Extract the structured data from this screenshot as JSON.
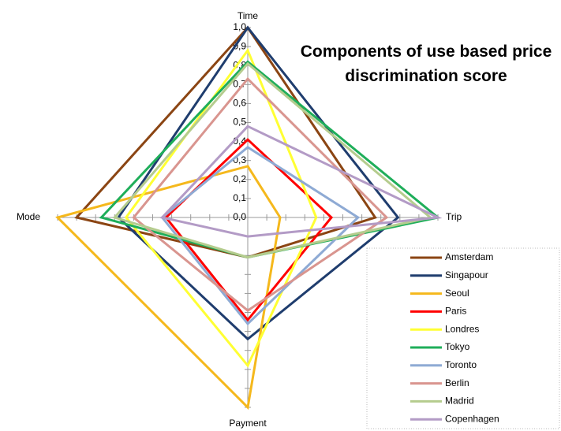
{
  "chart_data": {
    "type": "radar",
    "title": "Components of use based price discrimination score",
    "axes": [
      "Time",
      "Trip",
      "Payment",
      "Mode"
    ],
    "ylim": [
      0,
      1
    ],
    "yticks": [
      {
        "value": 0,
        "label": "0,0"
      },
      {
        "value": 0.1,
        "label": "0,1"
      },
      {
        "value": 0.2,
        "label": "0,2"
      },
      {
        "value": 0.3,
        "label": "0,3"
      },
      {
        "value": 0.4,
        "label": "0,4"
      },
      {
        "value": 0.5,
        "label": "0,5"
      },
      {
        "value": 0.6,
        "label": "0,6"
      },
      {
        "value": 0.7,
        "label": "0,7"
      },
      {
        "value": 0.8,
        "label": "0,8"
      },
      {
        "value": 0.9,
        "label": "0,9"
      },
      {
        "value": 1,
        "label": "1,0"
      }
    ],
    "legend": "bottom-right",
    "series": [
      {
        "name": "Amsterdam",
        "color": "#8b4513",
        "values": [
          1.0,
          0.67,
          0.21,
          0.9
        ]
      },
      {
        "name": "Singapour",
        "color": "#1f3d6e",
        "values": [
          1.0,
          0.79,
          0.64,
          0.68
        ]
      },
      {
        "name": "Seoul",
        "color": "#f5b81c",
        "values": [
          0.27,
          0.17,
          1.0,
          1.0
        ]
      },
      {
        "name": "Paris",
        "color": "#ff0000",
        "values": [
          0.41,
          0.44,
          0.54,
          0.43
        ]
      },
      {
        "name": "Londres",
        "color": "#ffff33",
        "values": [
          0.88,
          0.36,
          0.78,
          0.64
        ]
      },
      {
        "name": "Tokyo",
        "color": "#1fae5a",
        "values": [
          0.82,
          1.0,
          0.21,
          0.77
        ]
      },
      {
        "name": "Toronto",
        "color": "#8eaad4",
        "values": [
          0.37,
          0.58,
          0.56,
          0.45
        ]
      },
      {
        "name": "Berlin",
        "color": "#d9958f",
        "values": [
          0.73,
          0.73,
          0.49,
          0.6
        ]
      },
      {
        "name": "Madrid",
        "color": "#b5cc8e",
        "values": [
          0.81,
          0.96,
          0.21,
          0.7
        ]
      },
      {
        "name": "Copenhagen",
        "color": "#b39bc6",
        "values": [
          0.48,
          1.0,
          0.1,
          0.45
        ]
      }
    ]
  }
}
